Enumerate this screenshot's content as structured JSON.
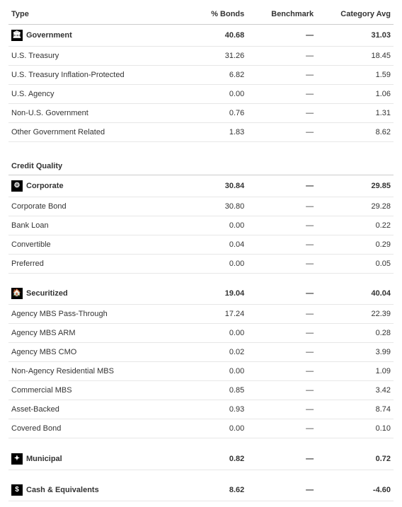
{
  "columns": {
    "type": "Type",
    "bonds": "% Bonds",
    "benchmark": "Benchmark",
    "catavg": "Category Avg"
  },
  "dash": "—",
  "sections": [
    {
      "title": null,
      "header": {
        "icon": "🏛",
        "label": "Government",
        "bonds": "40.68",
        "bench": "—",
        "catavg": "31.03"
      },
      "rows": [
        {
          "label": "U.S. Treasury",
          "bonds": "31.26",
          "bench": "—",
          "catavg": "18.45"
        },
        {
          "label": "U.S. Treasury Inflation-Protected",
          "bonds": "6.82",
          "bench": "—",
          "catavg": "1.59"
        },
        {
          "label": "U.S. Agency",
          "bonds": "0.00",
          "bench": "—",
          "catavg": "1.06"
        },
        {
          "label": "Non-U.S. Government",
          "bonds": "0.76",
          "bench": "—",
          "catavg": "1.31"
        },
        {
          "label": "Other Government Related",
          "bonds": "1.83",
          "bench": "—",
          "catavg": "8.62"
        }
      ]
    },
    {
      "title": "Credit Quality",
      "header": {
        "icon": "⚙",
        "label": "Corporate",
        "bonds": "30.84",
        "bench": "—",
        "catavg": "29.85"
      },
      "rows": [
        {
          "label": "Corporate Bond",
          "bonds": "30.80",
          "bench": "—",
          "catavg": "29.28"
        },
        {
          "label": "Bank Loan",
          "bonds": "0.00",
          "bench": "—",
          "catavg": "0.22"
        },
        {
          "label": "Convertible",
          "bonds": "0.04",
          "bench": "—",
          "catavg": "0.29"
        },
        {
          "label": "Preferred",
          "bonds": "0.00",
          "bench": "—",
          "catavg": "0.05"
        }
      ]
    },
    {
      "title": null,
      "header": {
        "icon": "🏠",
        "label": "Securitized",
        "bonds": "19.04",
        "bench": "—",
        "catavg": "40.04"
      },
      "rows": [
        {
          "label": "Agency MBS Pass-Through",
          "bonds": "17.24",
          "bench": "—",
          "catavg": "22.39"
        },
        {
          "label": "Agency MBS ARM",
          "bonds": "0.00",
          "bench": "—",
          "catavg": "0.28"
        },
        {
          "label": "Agency MBS CMO",
          "bonds": "0.02",
          "bench": "—",
          "catavg": "3.99"
        },
        {
          "label": "Non-Agency Residential MBS",
          "bonds": "0.00",
          "bench": "—",
          "catavg": "1.09"
        },
        {
          "label": "Commercial MBS",
          "bonds": "0.85",
          "bench": "—",
          "catavg": "3.42"
        },
        {
          "label": "Asset-Backed",
          "bonds": "0.93",
          "bench": "—",
          "catavg": "8.74"
        },
        {
          "label": "Covered Bond",
          "bonds": "0.00",
          "bench": "—",
          "catavg": "0.10"
        }
      ]
    },
    {
      "title": null,
      "header": {
        "icon": "✦",
        "label": "Municipal",
        "bonds": "0.82",
        "bench": "—",
        "catavg": "0.72"
      },
      "rows": []
    },
    {
      "title": null,
      "header": {
        "icon": "$",
        "label": "Cash & Equivalents",
        "bonds": "8.62",
        "bench": "—",
        "catavg": "-4.60"
      },
      "rows": []
    }
  ]
}
